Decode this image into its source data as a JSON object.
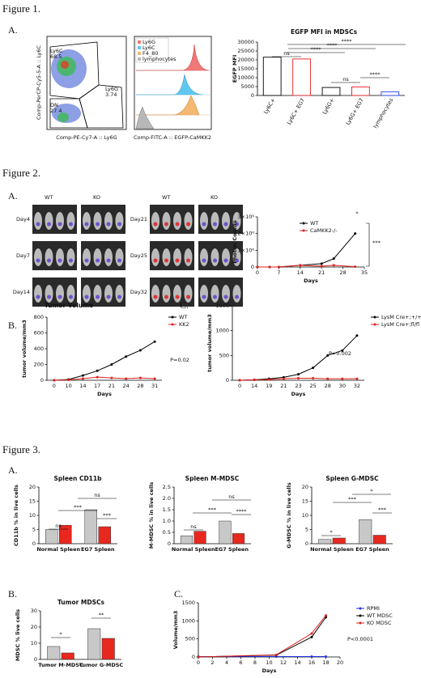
{
  "figure_labels": [
    "Figure 1.",
    "Figure 2.",
    "Figure 3."
  ],
  "panel_labels": [
    "A.",
    "A.",
    "B.",
    "C.",
    "A.",
    "B.",
    "C."
  ],
  "flow": {
    "gates": [
      {
        "name": "Ly6C",
        "value": "68.5"
      },
      {
        "name": "Ly6G",
        "value": "3.74"
      },
      {
        "name": "DN",
        "value": "27.4"
      }
    ],
    "scatter_ylabel": "Comp-PerCP-Cy5-5-A :: Ly6C",
    "scatter_xlabel": "Comp-PE-Cy7-A :: Ly6G",
    "histogram_legend": [
      "Ly6G",
      "Ly6C",
      "F4_80",
      "lymphocytes"
    ],
    "histogram_xlabel": "Comp-FITC-A :: EGFP-CaMKK2"
  },
  "imaging": {
    "columns": [
      "WT",
      "KO",
      "WT",
      "KO"
    ],
    "days": [
      "Day4",
      "Day7",
      "Day14",
      "Day21",
      "Day25",
      "Day32"
    ]
  },
  "chart_data": [
    {
      "type": "bar",
      "title": "EGFP MFI in MDSCs",
      "ylabel": "EGFP MFI",
      "categories": [
        "Ly6C+",
        "Ly6C+ EG7",
        "Ly6G+",
        "Ly6G+ EG7",
        "lymphocytes"
      ],
      "values": [
        21500,
        20500,
        4500,
        4800,
        2000
      ],
      "colors": [
        "#000000",
        "#e02020",
        "#000000",
        "#e02020",
        "#2040e0"
      ],
      "ylim": [
        0,
        30000
      ],
      "yticks": [
        0,
        5000,
        10000,
        15000,
        20000,
        25000,
        30000
      ],
      "annotations": [
        "ns",
        "****",
        "****",
        "****",
        "ns",
        "****"
      ]
    },
    {
      "type": "line",
      "ylabel": "Photon Counts",
      "xlabel": "Days",
      "x": [
        0,
        4,
        7,
        14,
        21,
        25,
        32
      ],
      "series": [
        {
          "name": "WT",
          "color": "#000000",
          "values": [
            0,
            0,
            0,
            100000,
            200000,
            500000,
            2000000
          ]
        },
        {
          "name": "CaMKK2-/-",
          "color": "#e02020",
          "values": [
            0,
            0,
            0,
            100000,
            50000,
            100000,
            20000
          ]
        }
      ],
      "xlim": [
        0,
        35
      ],
      "xticks": [
        0,
        7,
        14,
        21,
        28,
        35
      ],
      "ylim": [
        0,
        3000000
      ],
      "yticks": [
        0,
        {
          "value": 1000000,
          "label": "1×10⁶"
        },
        {
          "value": 2000000,
          "label": "2×10⁶"
        },
        {
          "value": 3000000,
          "label": "3×10⁶"
        }
      ],
      "annotations": [
        "*",
        "***"
      ]
    },
    {
      "type": "line",
      "title": "Tumor Volume",
      "ylabel": "tumor volume/mm3",
      "xlabel": "Days",
      "categories": [
        "0",
        "10",
        "14",
        "17",
        "21",
        "24",
        "28",
        "31"
      ],
      "series": [
        {
          "name": "WT",
          "color": "#000000",
          "values": [
            0,
            10,
            60,
            120,
            200,
            300,
            380,
            490
          ]
        },
        {
          "name": "KK2",
          "color": "#e02020",
          "values": [
            0,
            5,
            20,
            40,
            30,
            20,
            30,
            20
          ]
        }
      ],
      "ylim": [
        0,
        800
      ],
      "yticks": [
        0,
        200,
        400,
        600,
        800
      ],
      "annotations": [
        "P=0.02"
      ]
    },
    {
      "type": "line",
      "ylabel": "tumor volume/mm3",
      "xlabel": "Days",
      "categories": [
        "0",
        "14",
        "19",
        "21",
        "23",
        "25",
        "28",
        "30",
        "32"
      ],
      "series": [
        {
          "name": "LysM Cre+;+/+",
          "color": "#000000",
          "values": [
            0,
            10,
            30,
            60,
            120,
            250,
            500,
            600,
            900
          ]
        },
        {
          "name": "LysM Cre+;fl/fl",
          "color": "#e02020",
          "values": [
            0,
            10,
            15,
            30,
            40,
            40,
            30,
            30,
            30
          ]
        }
      ],
      "ylim": [
        0,
        1500
      ],
      "yticks": [
        0,
        500,
        1000,
        1500
      ],
      "annotations": [
        "P=0.002"
      ]
    },
    {
      "type": "groupbar",
      "title": "Spleen CD11b",
      "ylabel": "CD11b % in live cells",
      "categories": [
        "Normal Spleen",
        "EG7 Spleen"
      ],
      "series": [
        {
          "color": "#c8c8c8",
          "values": [
            5,
            12
          ]
        },
        {
          "color": "#e8281e",
          "values": [
            6.5,
            6
          ]
        }
      ],
      "ylim": [
        0,
        20
      ],
      "yticks": [
        0,
        5,
        10,
        15,
        20
      ],
      "annotations": [
        "ns",
        "***",
        "ns",
        "***"
      ]
    },
    {
      "type": "groupbar",
      "title": "Spleen M-MDSC",
      "ylabel": "M-MDSC % in live cells",
      "categories": [
        "Normal Spleen",
        "EG7 Spleen"
      ],
      "series": [
        {
          "color": "#c8c8c8",
          "values": [
            0.35,
            1.0
          ]
        },
        {
          "color": "#e8281e",
          "values": [
            0.55,
            0.45
          ]
        }
      ],
      "ylim": [
        0,
        2.5
      ],
      "yticks": [
        0,
        0.5,
        {
          "value": 1,
          "label": "1.0"
        },
        1.5,
        {
          "value": 2,
          "label": "2.0"
        },
        2.5
      ],
      "annotations": [
        "ns",
        "***",
        "ns",
        "****"
      ]
    },
    {
      "type": "groupbar",
      "title": "Spleen G-MDSC",
      "ylabel": "G-MDSC % in live cells",
      "categories": [
        "Normal Spleen",
        "EG7 Spleen"
      ],
      "series": [
        {
          "color": "#c8c8c8",
          "values": [
            1.5,
            8.5
          ]
        },
        {
          "color": "#e8281e",
          "values": [
            2,
            3
          ]
        }
      ],
      "ylim": [
        0,
        20
      ],
      "yticks": [
        0,
        5,
        10,
        15,
        20
      ],
      "annotations": [
        "*",
        "***",
        "*",
        "***"
      ]
    },
    {
      "type": "groupbar",
      "title": "Tumor MDSCs",
      "ylabel": "MDSC % live cells",
      "categories": [
        "Tumor M-MDSC",
        "Tumor G-MDSC"
      ],
      "series": [
        {
          "color": "#c8c8c8",
          "values": [
            8,
            19
          ]
        },
        {
          "color": "#e8281e",
          "values": [
            4,
            13
          ]
        }
      ],
      "ylim": [
        0,
        30
      ],
      "yticks": [
        0,
        10,
        20,
        30
      ],
      "annotations": [
        "*",
        "**"
      ]
    },
    {
      "type": "line",
      "ylabel": "Volume/mm3",
      "xlabel": "Days",
      "x": [
        0,
        11,
        16,
        18
      ],
      "series": [
        {
          "name": "RPMI",
          "color": "#2030e0",
          "values": [
            10,
            10,
            10,
            10
          ]
        },
        {
          "name": "WT MDSC",
          "color": "#000000",
          "values": [
            0,
            50,
            550,
            1100
          ]
        },
        {
          "name": "KO MDSC",
          "color": "#e02020",
          "values": [
            0,
            60,
            650,
            1150
          ]
        }
      ],
      "xlim": [
        0,
        20
      ],
      "xticks": [
        0,
        2,
        4,
        6,
        8,
        10,
        12,
        14,
        16,
        18,
        20
      ],
      "ylim": [
        0,
        1500
      ],
      "yticks": [
        0,
        500,
        1000,
        1500
      ],
      "annotations": [
        "P<0.0001"
      ]
    }
  ]
}
